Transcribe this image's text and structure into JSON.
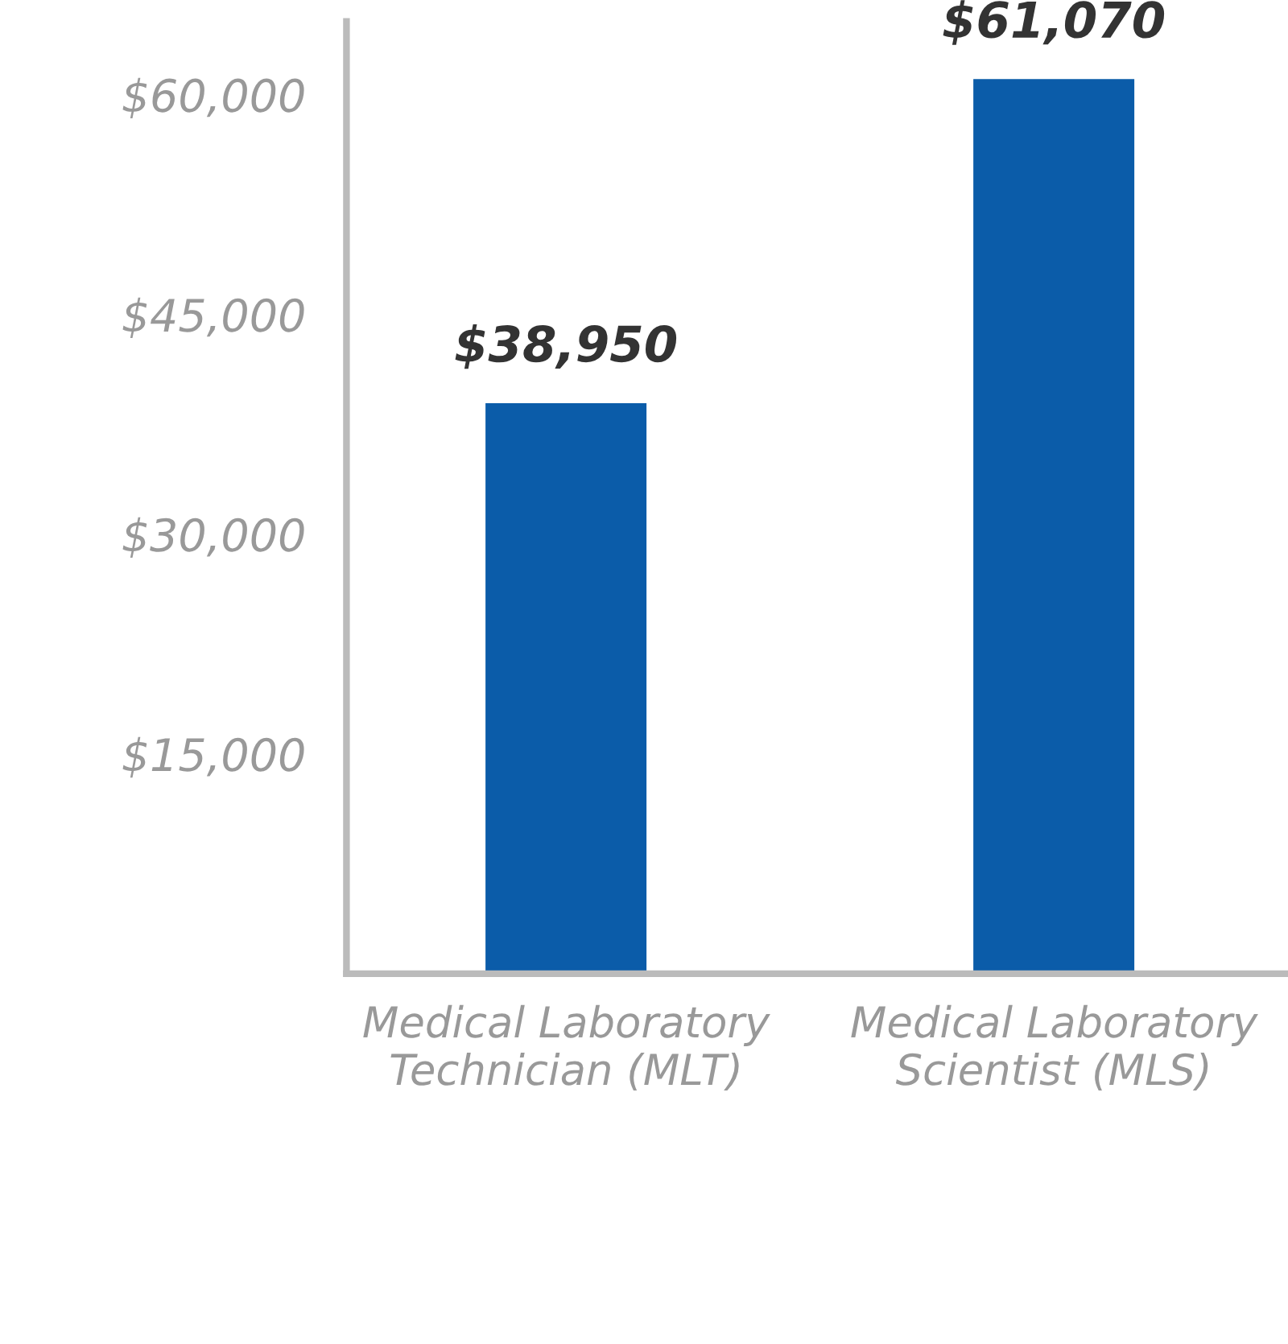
{
  "chart_data": {
    "type": "bar",
    "categories": [
      "Medical Laboratory\nTechnician (MLT)",
      "Medical Laboratory\nScientist (MLS)"
    ],
    "values": [
      38950,
      61070
    ],
    "value_labels": [
      "$38,950",
      "$61,070"
    ],
    "color": "#0b5ca9",
    "ylim": [
      0,
      65000
    ],
    "yticks": [
      {
        "value": 15000,
        "label": "$15,000"
      },
      {
        "value": 30000,
        "label": "$30,000"
      },
      {
        "value": 45000,
        "label": "$45,000"
      },
      {
        "value": 60000,
        "label": "$60,000"
      }
    ],
    "grid": false,
    "legend": false
  }
}
